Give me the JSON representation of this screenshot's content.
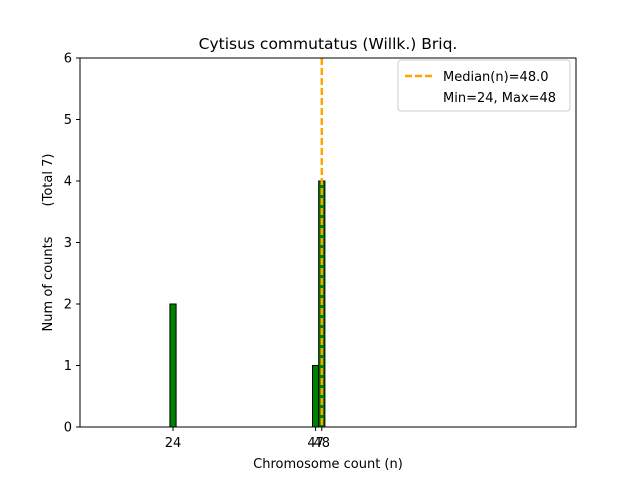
{
  "chart_data": {
    "type": "bar",
    "title": "Cytisus commutatus (Willk.) Briq.",
    "xlabel": "Chromosome count (n)",
    "ylabel": "Num of counts",
    "ylabel_total": "(Total 7)",
    "xlim": [
      9,
      89
    ],
    "ylim": [
      0,
      6
    ],
    "x_ticks": [
      24,
      47,
      48
    ],
    "y_ticks": [
      0,
      1,
      2,
      3,
      4,
      5,
      6
    ],
    "bar_width": 1,
    "bars": [
      {
        "x": 24,
        "value": 2
      },
      {
        "x": 47,
        "value": 1
      },
      {
        "x": 48,
        "value": 4
      }
    ],
    "bar_color": "#008000",
    "bar_edge_color": "#000000",
    "median": 48.0,
    "median_color": "#FFA500",
    "legend_position": "top-right",
    "legend": {
      "median_label": "Median(n)=48.0",
      "range_label": "Min=24, Max=48"
    }
  }
}
